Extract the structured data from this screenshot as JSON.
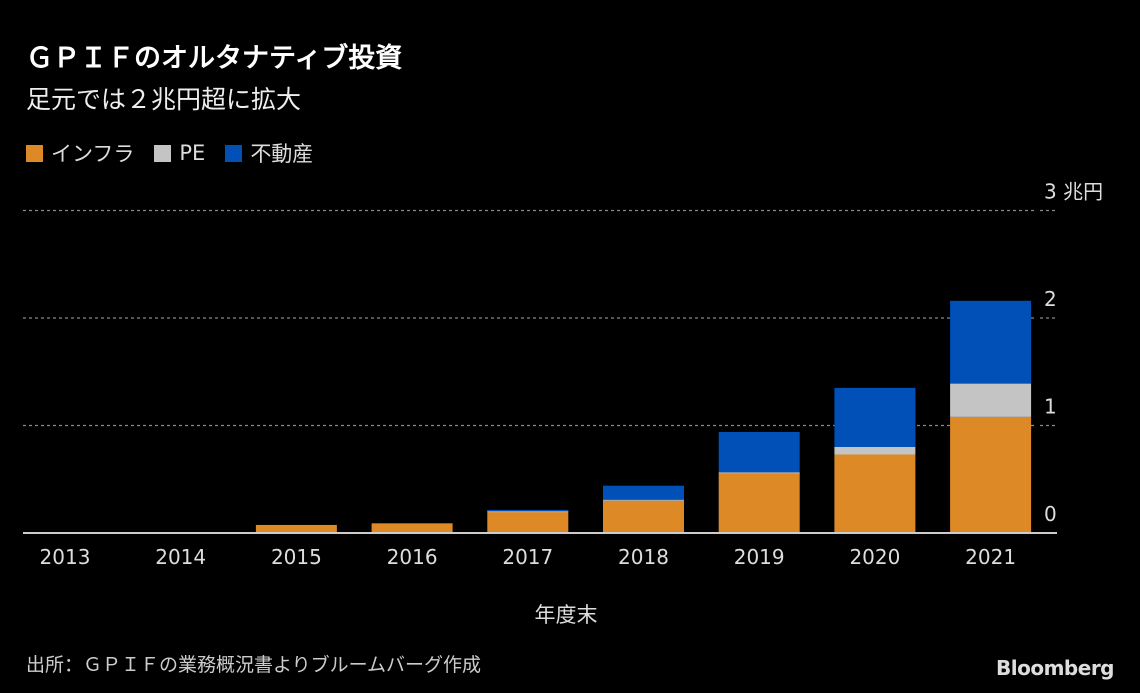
{
  "title": "ＧＰＩＦのオルタナティブ投資",
  "subtitle": "足元では２兆円超に拡大",
  "source": "出所：ＧＰＩＦの業務概況書よりブルームバーグ作成",
  "logo": "Bloomberg",
  "chart_data": {
    "type": "bar",
    "stacked": true,
    "categories": [
      "2013",
      "2014",
      "2015",
      "2016",
      "2017",
      "2018",
      "2019",
      "2020",
      "2021"
    ],
    "series": [
      {
        "name": "インフラ",
        "color": "#dd8a26",
        "values": [
          0,
          0,
          0.075,
          0.09,
          0.2,
          0.3,
          0.56,
          0.73,
          1.08
        ]
      },
      {
        "name": "PE",
        "color": "#c4c4c4",
        "values": [
          0,
          0,
          0,
          0,
          0.003,
          0.01,
          0.005,
          0.07,
          0.31
        ]
      },
      {
        "name": "不動産",
        "color": "#0050b8",
        "values": [
          0,
          0,
          0,
          0,
          0.012,
          0.13,
          0.375,
          0.55,
          0.77
        ]
      }
    ],
    "xlabel": "年度末",
    "ylabel": "",
    "y_unit": "兆円",
    "ylim": [
      0,
      3
    ],
    "yticks": [
      "0",
      "1",
      "2",
      "3 兆円"
    ],
    "grid": true,
    "legend": "top-left"
  }
}
